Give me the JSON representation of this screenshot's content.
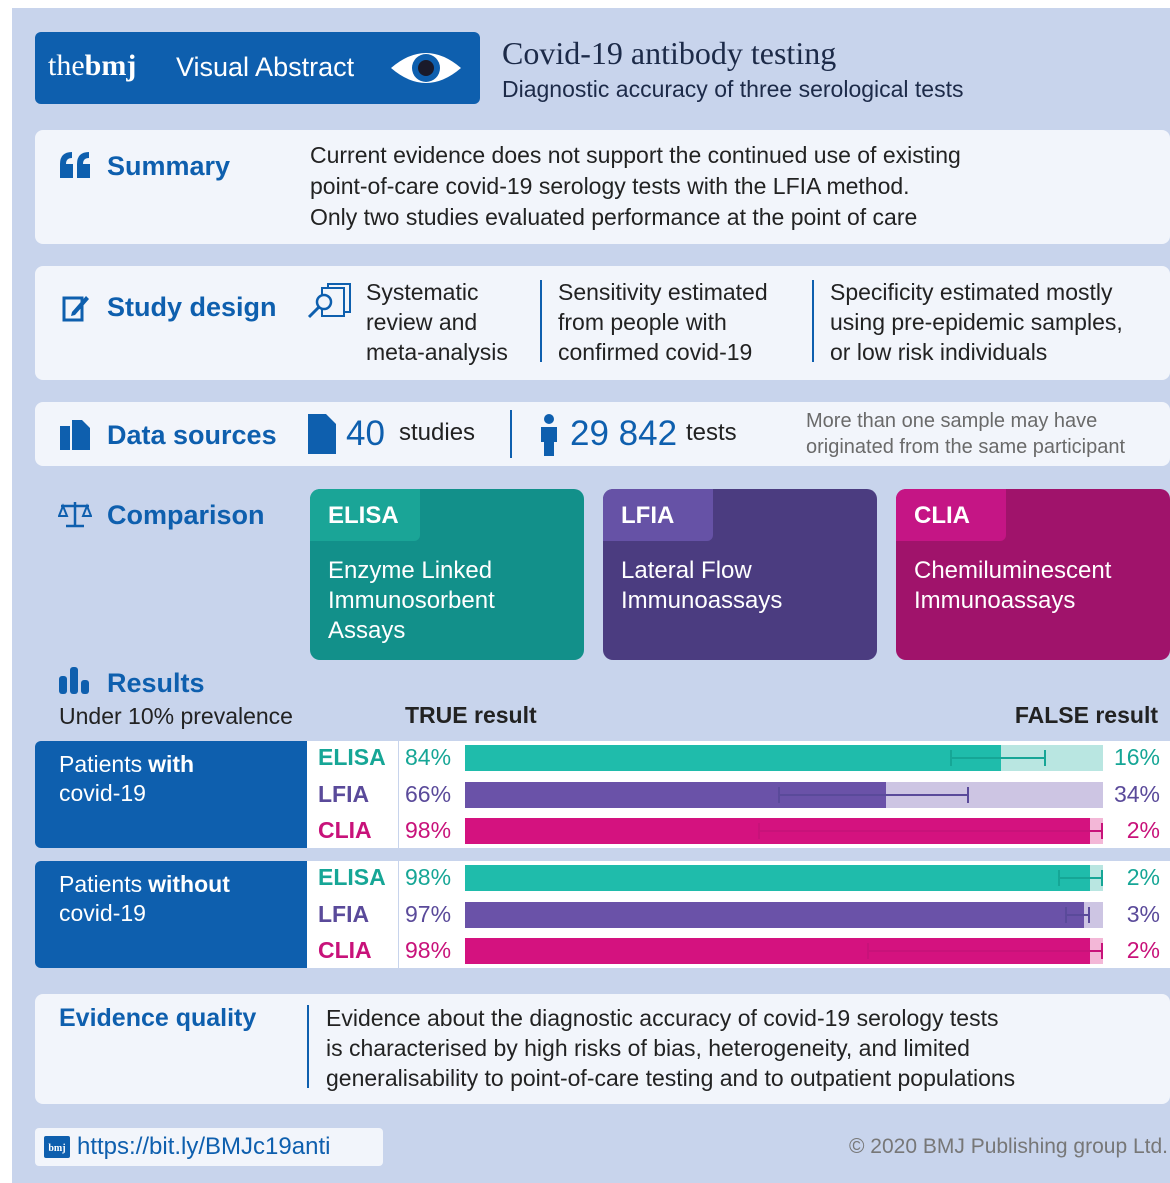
{
  "header": {
    "brand_the": "the",
    "brand_bmj": "bmj",
    "brand_label": "Visual Abstract",
    "title": "Covid-19 antibody testing",
    "subtitle": "Diagnostic accuracy of three serological tests"
  },
  "summary": {
    "heading": "Summary",
    "lines": [
      "Current evidence does not support the continued use of existing",
      "point-of-care covid-19 serology tests with the LFIA method.",
      "Only two studies evaluated performance at the point of care"
    ]
  },
  "study_design": {
    "heading": "Study design",
    "columns": [
      [
        "Systematic",
        "review and",
        "meta-analysis"
      ],
      [
        "Sensitivity estimated",
        "from people with",
        "confirmed covid-19"
      ],
      [
        "Specificity estimated mostly",
        "using pre-epidemic samples,",
        "or low risk individuals"
      ]
    ]
  },
  "data_sources": {
    "heading": "Data sources",
    "studies_count": "40",
    "studies_label": "studies",
    "tests_count": "29 842",
    "tests_label": "tests",
    "note": [
      "More than one sample may have",
      "originated from the same participant"
    ]
  },
  "comparison": {
    "heading": "Comparison",
    "tests": [
      {
        "name": "ELISA",
        "lines": [
          "Enzyme Linked",
          "Immunosorbent",
          "Assays"
        ],
        "color": "#12908a",
        "tab_color": "#1aa597"
      },
      {
        "name": "LFIA",
        "lines": [
          "Lateral Flow",
          "Immunoassays"
        ],
        "color": "#4b3c80",
        "tab_color": "#6652a6"
      },
      {
        "name": "CLIA",
        "lines": [
          "Chemiluminescent",
          "Immunoassays"
        ],
        "color": "#a0136b",
        "tab_color": "#c51585"
      }
    ]
  },
  "results": {
    "heading": "Results",
    "prevalence": "Under 10% prevalence",
    "true_heading": "TRUE result",
    "false_heading": "FALSE result",
    "xlim": [
      0,
      100
    ],
    "groups": [
      {
        "label": [
          "Patients",
          "with",
          "covid-19"
        ],
        "rows": [
          {
            "test": "ELISA",
            "true": 84,
            "true_label": "84%",
            "false": 16,
            "false_label": "16%",
            "ci": [
              76,
              91
            ],
            "color": "#1fbcab",
            "light": "#b9e6e1",
            "text_color": "#16a696"
          },
          {
            "test": "LFIA",
            "true": 66,
            "true_label": "66%",
            "false": 34,
            "false_label": "34%",
            "ci": [
              49,
              79
            ],
            "color": "#6a52a8",
            "light": "#cdc5e3",
            "text_color": "#5a4a9a"
          },
          {
            "test": "CLIA",
            "true": 98,
            "true_label": "98%",
            "false": 2,
            "false_label": "2%",
            "ci": [
              46,
              100
            ],
            "color": "#d4127f",
            "light": "#f3b7d7",
            "text_color": "#c8127a"
          }
        ]
      },
      {
        "label": [
          "Patients",
          "without",
          "covid-19"
        ],
        "rows": [
          {
            "test": "ELISA",
            "true": 98,
            "true_label": "98%",
            "false": 2,
            "false_label": "2%",
            "ci": [
              93,
              100
            ],
            "color": "#1fbcab",
            "light": "#b9e6e1",
            "text_color": "#16a696"
          },
          {
            "test": "LFIA",
            "true": 97,
            "true_label": "97%",
            "false": 3,
            "false_label": "3%",
            "ci": [
              94,
              98
            ],
            "color": "#6a52a8",
            "light": "#cdc5e3",
            "text_color": "#5a4a9a"
          },
          {
            "test": "CLIA",
            "true": 98,
            "true_label": "98%",
            "false": 2,
            "false_label": "2%",
            "ci": [
              63,
              100
            ],
            "color": "#d4127f",
            "light": "#f3b7d7",
            "text_color": "#c8127a"
          }
        ]
      }
    ]
  },
  "evidence": {
    "heading": "Evidence quality",
    "lines": [
      "Evidence about the diagnostic accuracy of covid-19 serology tests",
      "is characterised by high risks of bias, heterogeneity, and limited",
      "generalisability to point-of-care testing and to outpatient populations"
    ]
  },
  "footer": {
    "logo": "bmj",
    "url": "https://bit.ly/BMJc19anti",
    "copyright": "© 2020 BMJ Publishing group Ltd."
  }
}
